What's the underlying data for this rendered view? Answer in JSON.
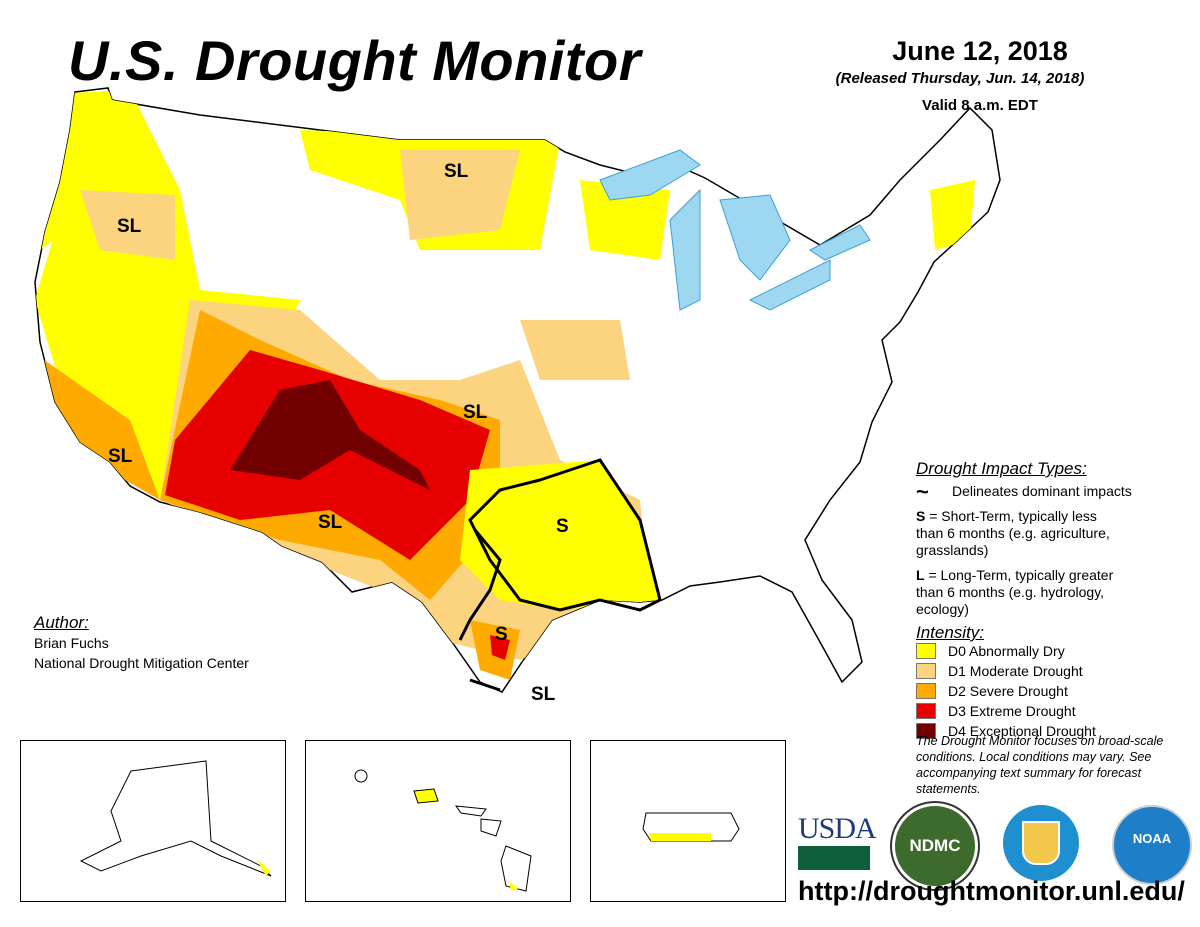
{
  "header": {
    "title": "U.S. Drought Monitor",
    "date": "June 12, 2018",
    "released": "(Released Thursday, Jun. 14, 2018)",
    "valid": "Valid 8 a.m. EDT"
  },
  "map_labels": [
    "SL",
    "SL",
    "SL",
    "SL",
    "SL",
    "S",
    "S",
    "SL"
  ],
  "impact_types": {
    "heading": "Drought Impact Types:",
    "delineates": "Delineates dominant impacts",
    "s_key": "S",
    "s_text": " = Short-Term, typically less than 6 months (e.g. agriculture, grasslands)",
    "l_key": "L",
    "l_text": " = Long-Term, typically greater than 6 months (e.g. hydrology, ecology)"
  },
  "intensity": {
    "heading": "Intensity:",
    "levels": [
      {
        "label": "D0 Abnormally Dry",
        "color": "#FFFF00"
      },
      {
        "label": "D1 Moderate Drought",
        "color": "#FCD37F"
      },
      {
        "label": "D2 Severe Drought",
        "color": "#FFAA00"
      },
      {
        "label": "D3 Extreme Drought",
        "color": "#E60000"
      },
      {
        "label": "D4 Exceptional Drought",
        "color": "#730000"
      }
    ]
  },
  "note": "The Drought Monitor focuses on broad-scale conditions. Local conditions may vary. See accompanying text summary for forecast statements.",
  "author": {
    "heading": "Author:",
    "name": "Brian Fuchs",
    "org": "National Drought Mitigation Center"
  },
  "logos": {
    "usda": "USDA",
    "ndmc": "NDMC",
    "noaa": "NOAA"
  },
  "url": "http://droughtmonitor.unl.edu/"
}
